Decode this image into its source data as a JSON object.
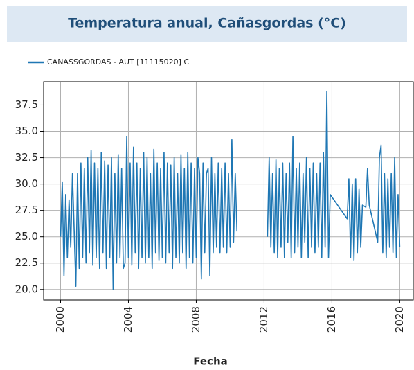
{
  "chart_data": {
    "type": "line",
    "title": "Temperatura anual, Cañasgordas (°C)",
    "xlabel": "Fecha",
    "xlim": [
      1999,
      2020.8
    ],
    "xticks": [
      2000,
      2004,
      2008,
      2012,
      2016,
      2020
    ],
    "ylim": [
      19.0,
      39.7
    ],
    "yticks": [
      {
        "value": 20,
        "label": "20.0"
      },
      22.5,
      {
        "value": 25,
        "label": "25.0"
      },
      27.5,
      {
        "value": 30,
        "label": "30.0"
      },
      32.5,
      {
        "value": 35,
        "label": "35.0"
      },
      37.5
    ],
    "grid": true,
    "legend": "upper left",
    "series": [
      {
        "name": "CANASSGORDAS - AUT [11115020] C",
        "color": "#1f77b4",
        "x": [
          2000.0,
          2000.1,
          2000.2,
          2000.3,
          2000.4,
          2000.5,
          2000.6,
          2000.7,
          2000.9,
          2001.0,
          2001.1,
          2001.2,
          2001.3,
          2001.4,
          2001.5,
          2001.6,
          2001.7,
          2001.8,
          2001.9,
          2002.0,
          2002.1,
          2002.2,
          2002.3,
          2002.4,
          2002.5,
          2002.6,
          2002.7,
          2002.8,
          2002.9,
          2003.0,
          2003.1,
          2003.2,
          2003.3,
          2003.4,
          2003.5,
          2003.6,
          2003.7,
          2003.8,
          2003.9,
          2004.0,
          2004.1,
          2004.2,
          2004.3,
          2004.4,
          2004.5,
          2004.6,
          2004.7,
          2004.8,
          2004.9,
          2005.0,
          2005.1,
          2005.2,
          2005.3,
          2005.4,
          2005.5,
          2005.6,
          2005.7,
          2005.8,
          2005.9,
          2006.0,
          2006.1,
          2006.2,
          2006.3,
          2006.4,
          2006.5,
          2006.6,
          2006.7,
          2006.8,
          2006.9,
          2007.0,
          2007.1,
          2007.2,
          2007.3,
          2007.4,
          2007.5,
          2007.6,
          2007.7,
          2007.8,
          2007.9,
          2008.0,
          2008.1,
          2008.2,
          2008.3,
          2008.4,
          2008.5,
          2008.6,
          2008.7,
          2008.8,
          2008.9,
          2009.0,
          2009.1,
          2009.2,
          2009.3,
          2009.4,
          2009.5,
          2009.6,
          2009.7,
          2009.8,
          2009.9,
          2010.0,
          2010.1,
          2010.2,
          2010.3,
          2010.4,
          2011.3,
          2012.2,
          2012.3,
          2012.4,
          2012.5,
          2012.6,
          2012.7,
          2012.8,
          2012.9,
          2013.0,
          2013.1,
          2013.2,
          2013.3,
          2013.4,
          2013.5,
          2013.6,
          2013.7,
          2013.8,
          2013.9,
          2014.0,
          2014.1,
          2014.2,
          2014.3,
          2014.4,
          2014.5,
          2014.6,
          2014.7,
          2014.8,
          2014.9,
          2015.0,
          2015.1,
          2015.2,
          2015.3,
          2015.4,
          2015.5,
          2015.6,
          2015.7,
          2015.8,
          2015.9,
          2016.9,
          2017.0,
          2017.1,
          2017.2,
          2017.3,
          2017.4,
          2017.5,
          2017.6,
          2017.7,
          2017.8,
          2018.0,
          2018.1,
          2018.2,
          2018.7,
          2018.8,
          2018.9,
          2019.0,
          2019.1,
          2019.2,
          2019.3,
          2019.4,
          2019.5,
          2019.6,
          2019.7,
          2019.8,
          2019.9,
          2020.0
        ],
        "values": [
          25.0,
          30.2,
          21.3,
          29.0,
          23.0,
          28.5,
          24.0,
          31.0,
          20.3,
          31.0,
          22.0,
          32.0,
          23.0,
          31.5,
          22.5,
          32.5,
          23.5,
          33.2,
          22.3,
          32.0,
          23.0,
          31.5,
          22.0,
          33.0,
          23.5,
          32.2,
          22.0,
          31.8,
          23.0,
          32.5,
          20.0,
          31.0,
          22.5,
          32.8,
          23.0,
          31.5,
          22.0,
          22.5,
          34.5,
          23.0,
          32.0,
          22.3,
          33.5,
          23.5,
          32.0,
          22.0,
          31.5,
          23.0,
          33.0,
          22.5,
          32.5,
          23.0,
          31.0,
          22.0,
          33.3,
          23.5,
          32.0,
          22.8,
          31.5,
          23.0,
          33.0,
          22.5,
          32.0,
          23.5,
          31.8,
          22.0,
          32.5,
          23.0,
          31.0,
          22.5,
          32.8,
          23.5,
          31.5,
          22.0,
          33.0,
          23.0,
          32.0,
          22.5,
          31.5,
          23.0,
          32.5,
          31.0,
          21.0,
          32.0,
          23.5,
          31.0,
          31.5,
          21.3,
          32.5,
          23.5,
          31.0,
          24.0,
          32.0,
          23.5,
          31.5,
          24.0,
          32.0,
          23.5,
          31.0,
          24.0,
          34.2,
          24.5,
          31.0,
          25.5,
          null,
          25.0,
          32.5,
          24.0,
          31.0,
          23.5,
          32.3,
          23.0,
          31.5,
          24.0,
          32.0,
          23.0,
          31.0,
          24.5,
          32.0,
          23.0,
          34.5,
          23.5,
          31.5,
          24.0,
          32.0,
          23.0,
          31.0,
          24.5,
          32.5,
          23.0,
          31.5,
          24.0,
          32.0,
          23.5,
          31.0,
          24.0,
          32.0,
          23.0,
          33.0,
          24.0,
          38.8,
          23.0,
          29.0,
          26.7,
          30.5,
          23.0,
          30.0,
          22.8,
          30.5,
          23.5,
          29.5,
          24.0,
          28.0,
          27.8,
          31.5,
          28.0,
          24.5,
          32.5,
          33.7,
          23.5,
          31.0,
          23.0,
          30.5,
          24.0,
          31.0,
          23.5,
          32.5,
          23.0,
          29.0,
          24.0
        ]
      }
    ]
  }
}
